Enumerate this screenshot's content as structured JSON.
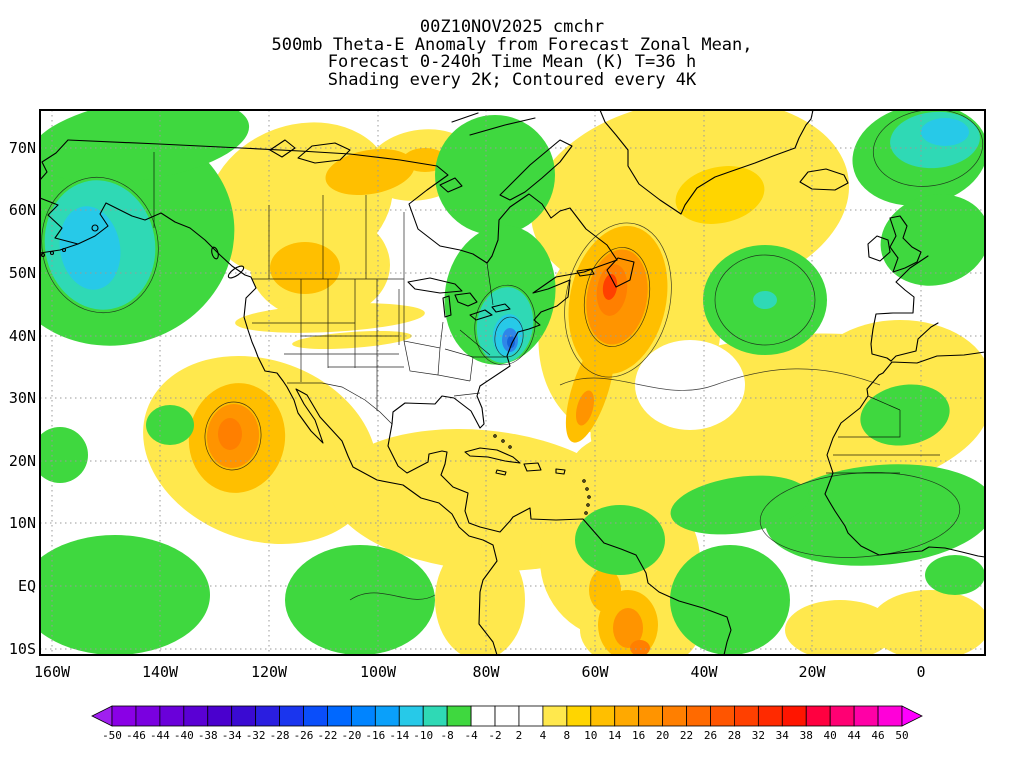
{
  "title": {
    "line1": "00Z10NOV2025  cmchr",
    "line2": "500mb Theta-E Anomaly from Forecast Zonal Mean,",
    "line3": "Forecast 0-240h Time Mean (K) T=36 h",
    "line4": "Shading every 2K; Contoured every 4K"
  },
  "chart_data": {
    "type": "heatmap",
    "title": "500mb Theta-E Anomaly from Forecast Zonal Mean",
    "init_time": "00Z10NOV2025",
    "model": "cmchr",
    "forecast_window": "Forecast 0-240h Time Mean (K) T=36 h",
    "units": "K",
    "shading_interval": "2K",
    "contour_interval": "4K",
    "x_axis": {
      "ticks": [
        "160W",
        "140W",
        "120W",
        "100W",
        "80W",
        "60W",
        "40W",
        "20W",
        "0"
      ],
      "range_deg_lon": [
        -162,
        12
      ]
    },
    "y_axis": {
      "ticks": [
        "70N",
        "60N",
        "50N",
        "40N",
        "30N",
        "20N",
        "10N",
        "EQ",
        "10S"
      ],
      "range_deg_lat": [
        -11,
        76
      ]
    },
    "colorbar": {
      "tick_labels": [
        "-50",
        "-46",
        "-44",
        "-40",
        "-38",
        "-34",
        "-32",
        "-28",
        "-26",
        "-22",
        "-20",
        "-16",
        "-14",
        "-10",
        "-8",
        "-4",
        "-2",
        "2",
        "4",
        "8",
        "10",
        "14",
        "16",
        "20",
        "22",
        "26",
        "28",
        "32",
        "34",
        "38",
        "40",
        "44",
        "46",
        "50"
      ],
      "colors": [
        "#a020f0",
        "#8a00e6",
        "#7a00e0",
        "#6a00da",
        "#5a00d4",
        "#4a00ce",
        "#3a0ad2",
        "#2a1ee0",
        "#1a35ee",
        "#0a4efa",
        "#0068ff",
        "#0084ff",
        "#0aa0fa",
        "#27c9e8",
        "#2fd9b5",
        "#3fd83f",
        "#ffffff",
        "#ffffff",
        "#ffffff",
        "#ffe84d",
        "#ffd500",
        "#ffbf00",
        "#ffa900",
        "#ff9400",
        "#ff7f00",
        "#ff6a00",
        "#ff5500",
        "#ff4000",
        "#ff2a00",
        "#ff1500",
        "#ff0040",
        "#ff0073",
        "#ff00a6",
        "#ff00d9",
        "#ff00ff"
      ]
    },
    "features": [
      {
        "region": "Gulf of Alaska / Aleutians",
        "sign": "negative",
        "approx_peak_K": -14
      },
      {
        "region": "Yukon / Western Canada",
        "sign": "positive",
        "approx_peak_K": 12
      },
      {
        "region": "Quebec / U.S. Northeast coast",
        "sign": "negative",
        "approx_peak_K": -22
      },
      {
        "region": "Newfoundland / NW Atlantic",
        "sign": "positive",
        "approx_peak_K": 24
      },
      {
        "region": "Central North Atlantic (45N 35W)",
        "sign": "negative",
        "approx_peak_K": -12
      },
      {
        "region": "NE Atlantic / British Isles",
        "sign": "negative",
        "approx_peak_K": -14
      },
      {
        "region": "Subtropical Atlantic and North Africa",
        "sign": "positive",
        "approx_peak_K": 8
      },
      {
        "region": "Baja California / East Pacific",
        "sign": "positive",
        "approx_peak_K": 18
      },
      {
        "region": "Tropical East Pacific ITCZ",
        "sign": "negative",
        "approx_peak_K": -8
      },
      {
        "region": "West Africa / Sahel belt",
        "sign": "negative",
        "approx_peak_K": -8
      },
      {
        "region": "NE South America",
        "sign": "negative",
        "approx_peak_K": -8
      },
      {
        "region": "Andes / Western Amazon",
        "sign": "positive",
        "approx_peak_K": 16
      }
    ]
  }
}
